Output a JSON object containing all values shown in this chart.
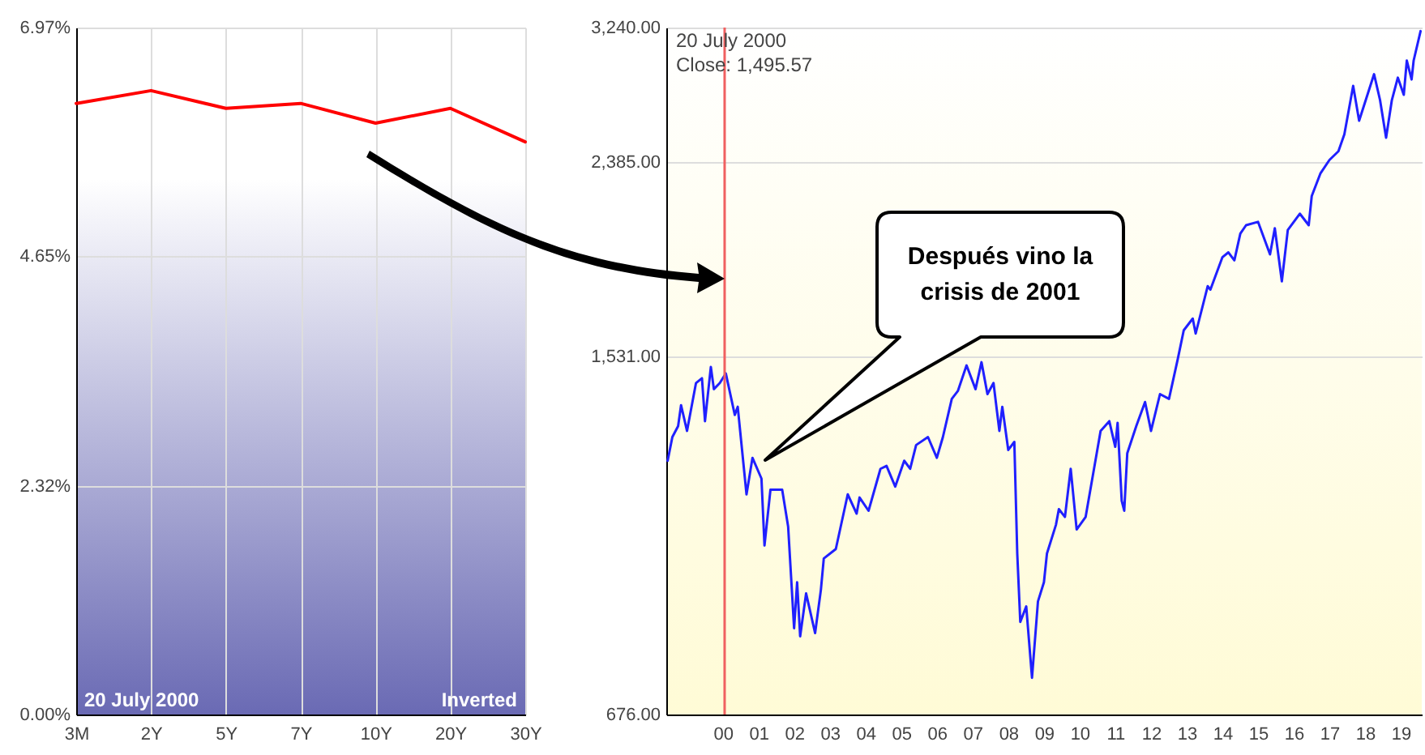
{
  "chart_data": [
    {
      "type": "line",
      "categories": [
        "3M",
        "2Y",
        "5Y",
        "7Y",
        "10Y",
        "20Y",
        "30Y"
      ],
      "series": [
        {
          "color": "#ff0000",
          "values": [
            6.2,
            6.33,
            6.15,
            6.2,
            6.0,
            6.15,
            5.81
          ]
        }
      ],
      "ylim": [
        0,
        6.97
      ],
      "yticks": [
        {
          "value": 0,
          "label": "0.00%"
        },
        {
          "value": 2.32,
          "label": "2.32%"
        },
        {
          "value": 4.65,
          "label": "4.65%"
        },
        {
          "value": 6.97,
          "label": "6.97%"
        }
      ],
      "grid": true,
      "annotations": [
        "20  July 2000",
        "Inverted"
      ]
    },
    {
      "type": "line",
      "x": [
        "1998-12-15",
        "1999-02",
        "1999-04",
        "1999-05",
        "1999-07",
        "1999-10",
        "1999-12",
        "2000-01",
        "2000-03",
        "2000-04",
        "2000-06",
        "2000-08",
        "2000-11",
        "2000-12",
        "2001-03",
        "2001-05",
        "2001-08",
        "2001-09",
        "2001-11",
        "2002-03",
        "2002-05",
        "2002-07",
        "2002-08",
        "2002-09",
        "2002-11",
        "2003-02",
        "2003-04",
        "2003-05",
        "2003-09",
        "2004-01",
        "2004-04",
        "2004-05",
        "2004-08",
        "2004-12",
        "2005-02",
        "2005-05",
        "2005-08",
        "2005-10",
        "2005-12",
        "2006-04",
        "2006-07",
        "2006-09",
        "2006-12",
        "2007-02",
        "2007-05",
        "2007-08",
        "2007-10",
        "2007-12",
        "2008-02",
        "2008-04",
        "2008-05",
        "2008-07",
        "2008-09",
        "2008-10",
        "2008-11",
        "2009-01",
        "2009-03",
        "2009-05",
        "2009-07",
        "2009-08",
        "2009-11",
        "2009-12",
        "2010-02",
        "2010-04",
        "2010-06",
        "2010-09",
        "2011-02",
        "2011-05",
        "2011-07-01",
        "2011-07-25",
        "2011-09-05",
        "2011-10-01",
        "2011-11-01",
        "2012-02",
        "2012-05",
        "2012-07",
        "2012-10",
        "2013-01",
        "2013-04",
        "2013-06",
        "2013-09",
        "2013-10",
        "2014-02",
        "2014-03",
        "2014-07",
        "2014-09",
        "2014-11",
        "2015-01",
        "2015-03",
        "2015-07",
        "2015-11",
        "2015-12-20",
        "2016-03",
        "2016-05",
        "2016-09",
        "2016-12",
        "2017-01",
        "2017-04",
        "2017-07",
        "2017-10",
        "2017-12",
        "2018-03",
        "2018-05",
        "2018-10",
        "2018-12",
        "2019-02",
        "2019-04",
        "2019-06",
        "2019-08",
        "2019-09",
        "2019-10-20",
        "2019-11-10",
        "2020-01-20"
      ],
      "series": [
        {
          "color": "#2020ff",
          "values": [
            1206,
            1273,
            1305,
            1369,
            1291,
            1440,
            1456,
            1320,
            1494,
            1420,
            1440,
            1472,
            1339,
            1364,
            1117,
            1214,
            1158,
            994,
            1129,
            1129,
            1038,
            823,
            914,
            808,
            891,
            814,
            898,
            965,
            986,
            1117,
            1069,
            1109,
            1076,
            1184,
            1192,
            1137,
            1206,
            1184,
            1250,
            1273,
            1214,
            1273,
            1389,
            1414,
            1499,
            1420,
            1510,
            1404,
            1440,
            1291,
            1364,
            1236,
            1259,
            976,
            835,
            865,
            735,
            875,
            914,
            976,
            1042,
            1080,
            1061,
            1184,
            1031,
            1061,
            1291,
            1320,
            1245,
            1315,
            1101,
            1076,
            1227,
            1305,
            1379,
            1291,
            1404,
            1389,
            1521,
            1624,
            1668,
            1612,
            1796,
            1782,
            1918,
            1940,
            1905,
            2025,
            2064,
            2080,
            1931,
            2050,
            1816,
            2042,
            2119,
            2064,
            2206,
            2324,
            2395,
            2443,
            2540,
            2836,
            2620,
            2913,
            2746,
            2520,
            2746,
            2890,
            2779,
            3005,
            2878,
            3005,
            3214
          ]
        }
      ],
      "xlim": [
        "1998-12",
        "2020-02"
      ],
      "xticks": [
        {
          "value": "2000-07-01",
          "label": "00"
        },
        {
          "value": "2001-07-01",
          "label": "01"
        },
        {
          "value": "2002-07-01",
          "label": "02"
        },
        {
          "value": "2003-07-01",
          "label": "03"
        },
        {
          "value": "2004-07-01",
          "label": "04"
        },
        {
          "value": "2005-07-01",
          "label": "05"
        },
        {
          "value": "2006-07-01",
          "label": "06"
        },
        {
          "value": "2007-07-01",
          "label": "07"
        },
        {
          "value": "2008-07-01",
          "label": "08"
        },
        {
          "value": "2009-07-01",
          "label": "09"
        },
        {
          "value": "2010-07-01",
          "label": "10"
        },
        {
          "value": "2011-07-01",
          "label": "11"
        },
        {
          "value": "2012-07-01",
          "label": "12"
        },
        {
          "value": "2013-07-01",
          "label": "13"
        },
        {
          "value": "2014-07-01",
          "label": "14"
        },
        {
          "value": "2015-07-01",
          "label": "15"
        },
        {
          "value": "2016-07-01",
          "label": "16"
        },
        {
          "value": "2017-07-01",
          "label": "17"
        },
        {
          "value": "2018-07-01",
          "label": "18"
        },
        {
          "value": "2019-07-01",
          "label": "19"
        }
      ],
      "ylim": [
        676,
        3240
      ],
      "log": "y",
      "yticks": [
        {
          "value": 676,
          "label": "676.00"
        },
        {
          "value": 1531,
          "label": "1,531.00"
        },
        {
          "value": 2385,
          "label": "2,385.00"
        },
        {
          "value": 3240,
          "label": "3,240.00"
        }
      ],
      "grid": "y",
      "ref_lines": [
        {
          "axis": "x",
          "value": "2000-07-20",
          "color": "#f06060"
        }
      ],
      "annotations": [
        "20  July 2000",
        "Close: 1,495.57",
        "Después vino la crisis de 2001"
      ]
    }
  ]
}
